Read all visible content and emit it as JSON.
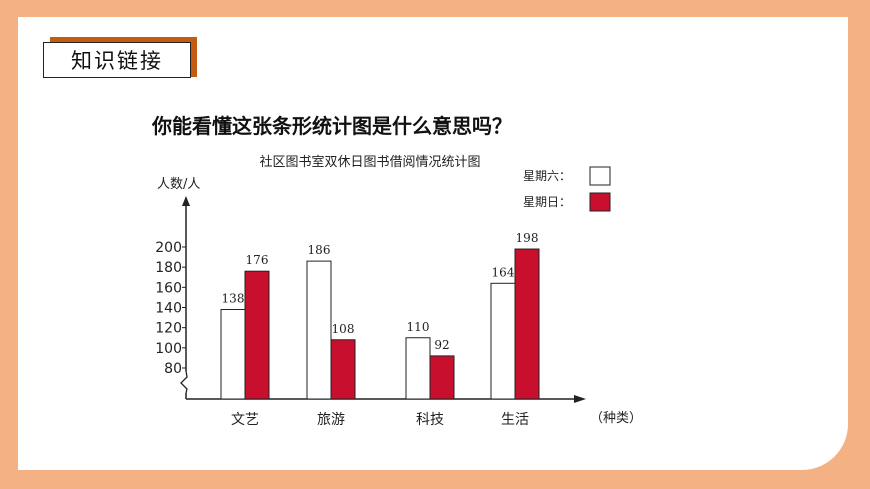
{
  "header": {
    "tag_label": "知识链接"
  },
  "question": "你能看懂这张条形统计图是什么意思吗？",
  "chart_data": {
    "type": "bar",
    "title": "社区图书室双休日图书借阅情况统计图",
    "ylabel": "人数/人",
    "xlabel": "（种类）",
    "categories": [
      "文艺",
      "旅游",
      "科技",
      "生活"
    ],
    "series": [
      {
        "name": "星期六：",
        "values": [
          138,
          186,
          110,
          164
        ],
        "color": "#ffffff"
      },
      {
        "name": "星期日：",
        "values": [
          176,
          108,
          92,
          198
        ],
        "color": "#c8102e"
      }
    ],
    "yticks": [
      80,
      100,
      120,
      140,
      160,
      180,
      200
    ],
    "ylim": [
      80,
      200
    ],
    "axis_break": true,
    "legend_position": "top-right"
  }
}
